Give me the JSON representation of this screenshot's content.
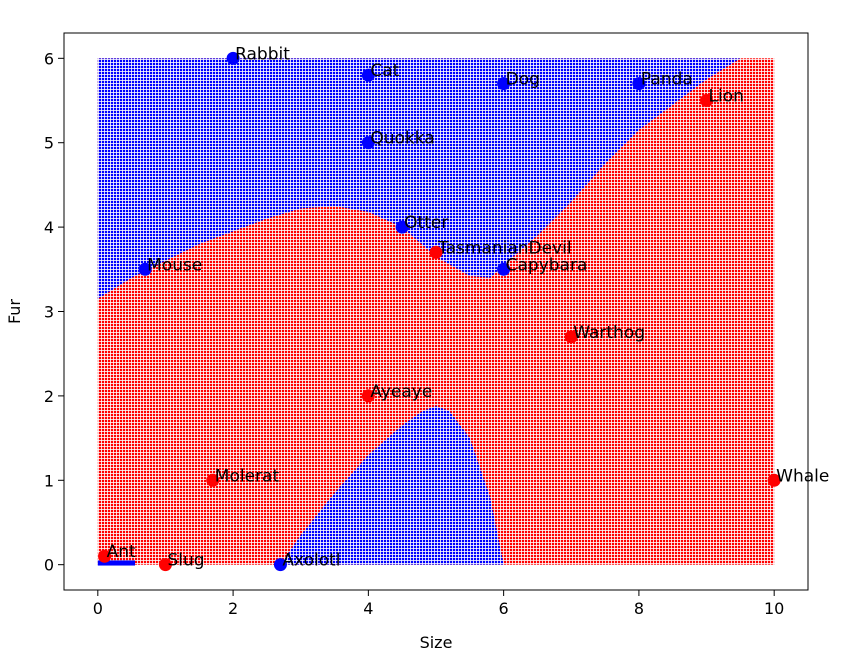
{
  "chart_data": {
    "type": "scatter",
    "title": "",
    "xlabel": "Size",
    "ylabel": "Fur",
    "xlim": [
      -0.5,
      10.5
    ],
    "ylim": [
      -0.3,
      6.3
    ],
    "x_ticks": [
      "0",
      "2",
      "4",
      "6",
      "8",
      "10"
    ],
    "x_tick_values": [
      0,
      2,
      4,
      6,
      8,
      10
    ],
    "y_ticks": [
      "0",
      "1",
      "2",
      "3",
      "4",
      "5",
      "6"
    ],
    "y_tick_values": [
      0,
      1,
      2,
      3,
      4,
      5,
      6
    ],
    "grid": false,
    "colors": {
      "class_blue": "#0000ff",
      "class_red": "#ff0000"
    },
    "background_regions": {
      "x_range": [
        0,
        10
      ],
      "y_range": [
        0,
        6
      ],
      "blue_upper_boundary": {
        "x": [
          0,
          0.5,
          1,
          1.5,
          2,
          2.5,
          3,
          3.5,
          4,
          4.5,
          5,
          5.5,
          5.8,
          6,
          6.5,
          7,
          7.5,
          8,
          8.5,
          9,
          9.5
        ],
        "fur": [
          3.15,
          3.4,
          3.6,
          3.8,
          3.95,
          4.1,
          4.22,
          4.25,
          4.18,
          4.0,
          3.65,
          3.42,
          3.4,
          3.55,
          3.9,
          4.3,
          4.75,
          5.15,
          5.45,
          5.75,
          6.0
        ]
      },
      "blue_lower_pocket": {
        "x": [
          2.7,
          3.0,
          3.5,
          4.0,
          4.5,
          4.8,
          5.0,
          5.2,
          5.5,
          5.8,
          6.0
        ],
        "fur": [
          0,
          0.35,
          0.85,
          1.3,
          1.65,
          1.82,
          1.88,
          1.82,
          1.5,
          0.8,
          0
        ]
      },
      "blue_corner": {
        "x": [
          0,
          0.55
        ],
        "fur": 0.05
      }
    },
    "points": [
      {
        "name": "Rabbit",
        "size": 2,
        "fur": 6,
        "class": "blue"
      },
      {
        "name": "Cat",
        "size": 4,
        "fur": 5.8,
        "class": "blue"
      },
      {
        "name": "Dog",
        "size": 6,
        "fur": 5.7,
        "class": "blue"
      },
      {
        "name": "Panda",
        "size": 8,
        "fur": 5.7,
        "class": "blue"
      },
      {
        "name": "Lion",
        "size": 9,
        "fur": 5.5,
        "class": "red"
      },
      {
        "name": "Quokka",
        "size": 4,
        "fur": 5,
        "class": "blue"
      },
      {
        "name": "Otter",
        "size": 4.5,
        "fur": 4,
        "class": "blue"
      },
      {
        "name": "TasmanianDevil",
        "size": 5,
        "fur": 3.7,
        "class": "red"
      },
      {
        "name": "Mouse",
        "size": 0.7,
        "fur": 3.5,
        "class": "blue"
      },
      {
        "name": "Capybara",
        "size": 6,
        "fur": 3.5,
        "class": "blue"
      },
      {
        "name": "Warthog",
        "size": 7,
        "fur": 2.7,
        "class": "red"
      },
      {
        "name": "Ayeaye",
        "size": 4,
        "fur": 2,
        "class": "red"
      },
      {
        "name": "Molerat",
        "size": 1.7,
        "fur": 1,
        "class": "red"
      },
      {
        "name": "Whale",
        "size": 10,
        "fur": 1,
        "class": "red"
      },
      {
        "name": "Ant",
        "size": 0.1,
        "fur": 0.1,
        "class": "red"
      },
      {
        "name": "Slug",
        "size": 1,
        "fur": 0,
        "class": "red"
      },
      {
        "name": "Axolotl",
        "size": 2.7,
        "fur": 0,
        "class": "blue"
      }
    ]
  }
}
